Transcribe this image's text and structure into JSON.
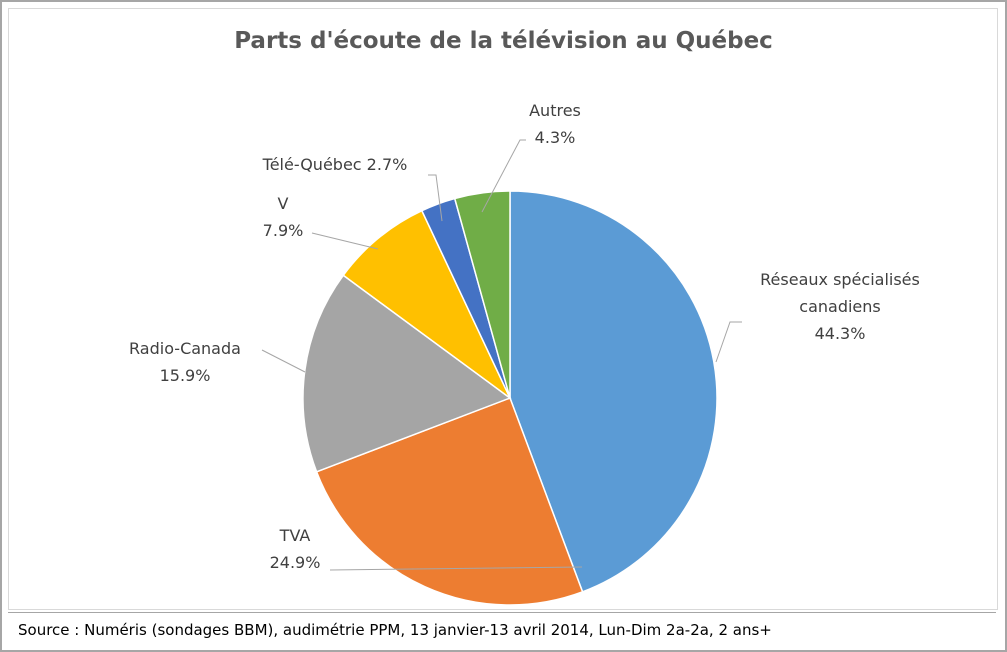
{
  "chart_data": {
    "type": "pie",
    "title": "Parts d'écoute de la télévision au Québec",
    "categories": [
      "Réseaux spécialisés canadiens",
      "TVA",
      "Radio-Canada",
      "V",
      "Télé-Québec",
      "Autres"
    ],
    "values": [
      44.3,
      24.9,
      15.9,
      7.9,
      2.7,
      4.3
    ],
    "value_labels": [
      "44.3%",
      "24.9%",
      "15.9%",
      "7.9%",
      "2.7%",
      "4.3%"
    ],
    "colors": [
      "#5b9bd5",
      "#ed7d31",
      "#a5a5a5",
      "#ffc000",
      "#4472c4",
      "#70ad47"
    ],
    "source": "Source : Numéris (sondages BBM), audimétrie PPM, 13 janvier-13 avril 2014, Lun-Dim 2a-2a, 2 ans+"
  }
}
